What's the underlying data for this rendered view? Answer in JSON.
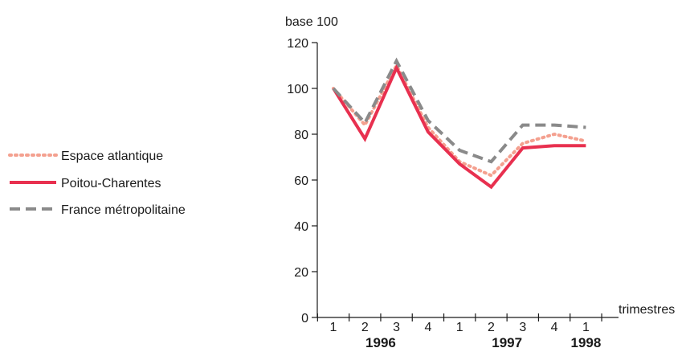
{
  "chart_data": {
    "type": "line",
    "ylabel": "base 100",
    "xlabel": "trimestres",
    "ylim": [
      0,
      120
    ],
    "yticks": [
      0,
      20,
      40,
      60,
      80,
      100,
      120
    ],
    "categories": [
      "1",
      "2",
      "3",
      "4",
      "1",
      "2",
      "3",
      "4",
      "1"
    ],
    "years": [
      {
        "label": "1996",
        "from": 0,
        "to": 3
      },
      {
        "label": "1997",
        "from": 4,
        "to": 7
      },
      {
        "label": "1998",
        "from": 8,
        "to": 8
      }
    ],
    "legend_position": "left",
    "grid": false,
    "series": [
      {
        "name": "Espace atlantique",
        "color": "#f4a08f",
        "style": "dotted",
        "values": [
          100,
          84,
          110,
          83,
          68,
          62,
          76,
          80,
          77
        ]
      },
      {
        "name": "Poitou-Charentes",
        "color": "#e8304f",
        "style": "solid",
        "values": [
          100,
          78,
          109,
          81,
          67,
          57,
          74,
          75,
          75
        ]
      },
      {
        "name": "France métropolitaine",
        "color": "#8a8a8a",
        "style": "dashed",
        "values": [
          100,
          85,
          112,
          86,
          73,
          68,
          84,
          84,
          83
        ]
      }
    ]
  }
}
